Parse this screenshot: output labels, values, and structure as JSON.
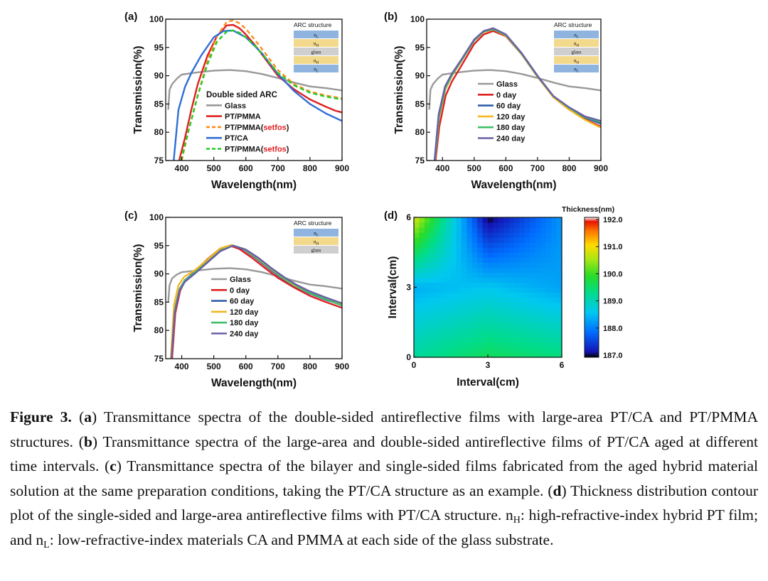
{
  "chart_data": [
    {
      "panel": "(a)",
      "type": "line",
      "xlabel": "Wavelength(nm)",
      "ylabel": "Transmission(%)",
      "xlim": [
        350,
        900
      ],
      "ylim": [
        75,
        100
      ],
      "xticks": [
        400,
        500,
        600,
        700,
        800,
        900
      ],
      "yticks": [
        75,
        80,
        85,
        90,
        95,
        100
      ],
      "legend_title": "Double sided ARC",
      "inset": {
        "title": "ARC structure",
        "layers": [
          "nL",
          "nH",
          "glass",
          "nH",
          "nL"
        ]
      },
      "series": [
        {
          "name": "Glass",
          "color": "#999999",
          "dash": "solid",
          "x": [
            358,
            362,
            370,
            385,
            400,
            450,
            500,
            550,
            600,
            650,
            700,
            750,
            800,
            850,
            900
          ],
          "y": [
            84,
            87.5,
            88.5,
            89.5,
            90.2,
            90.6,
            90.9,
            91.0,
            90.8,
            90.3,
            89.6,
            88.8,
            88.1,
            87.8,
            87.4
          ]
        },
        {
          "name": "PT/PMMA",
          "color": "#e02020",
          "dash": "solid",
          "x": [
            392,
            410,
            430,
            450,
            480,
            510,
            540,
            560,
            580,
            600,
            630,
            660,
            700,
            750,
            800,
            850,
            880,
            900
          ],
          "y": [
            75,
            79,
            84,
            88.5,
            93.5,
            97,
            98.9,
            99.0,
            98.4,
            97.3,
            95.3,
            93.0,
            90.0,
            87.6,
            85.8,
            84.5,
            83.8,
            83.5
          ]
        },
        {
          "name": "PT/PMMA(setfos)",
          "color": "#ff8c1a",
          "dash": "dashed",
          "x": [
            400,
            420,
            450,
            480,
            510,
            540,
            560,
            580,
            600,
            630,
            660,
            700,
            750,
            800,
            850,
            900
          ],
          "y": [
            75,
            80,
            86.5,
            92.5,
            97,
            99.5,
            99.8,
            99.3,
            98.3,
            96.2,
            94.0,
            91.0,
            88.5,
            87.2,
            86.5,
            86.0
          ]
        },
        {
          "name": "PT/CA",
          "color": "#2f6ed6",
          "dash": "solid",
          "x": [
            375,
            390,
            410,
            430,
            460,
            500,
            530,
            560,
            600,
            650,
            700,
            750,
            800,
            850,
            900
          ],
          "y": [
            75,
            84,
            88,
            90.5,
            93.5,
            96.8,
            97.9,
            98.0,
            96.8,
            94.0,
            90.3,
            87.3,
            85.0,
            83.3,
            82.0
          ]
        },
        {
          "name": "PT/PMMA(setfos)",
          "color": "#22cc22",
          "dash": "dashed",
          "x": [
            398,
            420,
            450,
            480,
            510,
            540,
            560,
            580,
            600,
            630,
            660,
            700,
            750,
            800,
            850,
            900
          ],
          "y": [
            75,
            80,
            86.5,
            92,
            96,
            97.8,
            98.0,
            97.6,
            96.8,
            95.2,
            93.2,
            90.5,
            88.3,
            87.0,
            86.3,
            85.8
          ]
        }
      ]
    },
    {
      "panel": "(b)",
      "type": "line",
      "xlabel": "Wavelength(nm)",
      "ylabel": "Transmission(%)",
      "xlim": [
        350,
        900
      ],
      "ylim": [
        75,
        100
      ],
      "xticks": [
        400,
        500,
        600,
        700,
        800,
        900
      ],
      "yticks": [
        75,
        80,
        85,
        90,
        95,
        100
      ],
      "inset": {
        "title": "ARC structure",
        "layers": [
          "nL",
          "nH",
          "glass",
          "nH",
          "nL"
        ]
      },
      "series": [
        {
          "name": "Glass",
          "color": "#999999",
          "x": [
            358,
            362,
            370,
            385,
            400,
            450,
            500,
            550,
            600,
            650,
            700,
            750,
            800,
            850,
            900
          ],
          "y": [
            84,
            87.5,
            88.5,
            89.5,
            90.2,
            90.6,
            90.9,
            91.0,
            90.8,
            90.3,
            89.6,
            88.8,
            88.1,
            87.8,
            87.4
          ]
        },
        {
          "name": "0 day",
          "color": "#e02020",
          "x": [
            378,
            390,
            410,
            430,
            460,
            500,
            530,
            560,
            600,
            650,
            700,
            750,
            800,
            850,
            900
          ],
          "y": [
            75,
            81,
            86.5,
            89,
            91.8,
            95.6,
            97.3,
            97.9,
            97.0,
            93.8,
            89.8,
            86.2,
            84.0,
            82.3,
            81.0
          ]
        },
        {
          "name": "60 day",
          "color": "#2f5fa8",
          "x": [
            375,
            388,
            408,
            430,
            460,
            500,
            530,
            560,
            600,
            650,
            700,
            750,
            800,
            850,
            900
          ],
          "y": [
            75,
            83,
            88,
            90.3,
            92.8,
            96.3,
            97.8,
            98.3,
            97.2,
            93.8,
            89.8,
            86.3,
            84.2,
            82.6,
            81.5
          ]
        },
        {
          "name": "120 day",
          "color": "#f2b81e",
          "x": [
            376,
            389,
            409,
            430,
            460,
            500,
            530,
            560,
            600,
            650,
            700,
            750,
            800,
            850,
            900
          ],
          "y": [
            75,
            82.5,
            87.6,
            90.0,
            92.6,
            96.2,
            97.7,
            98.2,
            97.1,
            93.8,
            89.8,
            86.2,
            84.0,
            82.2,
            80.8
          ]
        },
        {
          "name": "180 day",
          "color": "#3fbf6a",
          "x": [
            376,
            389,
            409,
            430,
            460,
            500,
            530,
            560,
            600,
            650,
            700,
            750,
            800,
            850,
            900
          ],
          "y": [
            75,
            82.8,
            87.8,
            90.1,
            92.7,
            96.2,
            97.8,
            98.2,
            97.2,
            93.9,
            89.9,
            86.4,
            84.3,
            82.7,
            81.8
          ]
        },
        {
          "name": "240 day",
          "color": "#6a5fa6",
          "x": [
            375,
            388,
            408,
            430,
            460,
            500,
            530,
            560,
            600,
            650,
            700,
            750,
            800,
            850,
            900
          ],
          "y": [
            75,
            83.2,
            88.1,
            90.4,
            92.9,
            96.4,
            97.9,
            98.4,
            97.3,
            94.0,
            90.0,
            86.4,
            84.4,
            82.8,
            82.0
          ]
        }
      ]
    },
    {
      "panel": "(c)",
      "type": "line",
      "xlabel": "Wavelength(nm)",
      "ylabel": "Transmission(%)",
      "xlim": [
        350,
        900
      ],
      "ylim": [
        75,
        100
      ],
      "xticks": [
        400,
        500,
        600,
        700,
        800,
        900
      ],
      "yticks": [
        75,
        80,
        85,
        90,
        95,
        100
      ],
      "inset": {
        "title": "ARC structure",
        "layers": [
          "nL",
          "nH",
          "glass"
        ]
      },
      "series": [
        {
          "name": "Glass",
          "color": "#999999",
          "x": [
            358,
            362,
            370,
            385,
            400,
            450,
            500,
            550,
            600,
            650,
            700,
            750,
            800,
            850,
            900
          ],
          "y": [
            85,
            88,
            89.2,
            89.9,
            90.3,
            90.6,
            90.9,
            91.0,
            90.8,
            90.3,
            89.6,
            88.8,
            88.1,
            87.8,
            87.4
          ]
        },
        {
          "name": "0 day",
          "color": "#e02020",
          "x": [
            370,
            380,
            395,
            410,
            440,
            480,
            520,
            550,
            580,
            620,
            660,
            700,
            750,
            800,
            850,
            900
          ],
          "y": [
            75,
            83,
            87,
            88.8,
            90.4,
            92.6,
            94.5,
            95.0,
            94.4,
            92.8,
            91.0,
            89.3,
            87.6,
            86.1,
            85.0,
            84.0
          ]
        },
        {
          "name": "60 day",
          "color": "#2f5fa8",
          "x": [
            368,
            378,
            393,
            410,
            440,
            480,
            520,
            555,
            590,
            630,
            670,
            710,
            750,
            800,
            850,
            900
          ],
          "y": [
            75,
            83.5,
            87.3,
            88.9,
            90.3,
            92.3,
            94.3,
            95.1,
            94.4,
            92.8,
            91.0,
            89.3,
            87.9,
            86.5,
            85.4,
            84.5
          ]
        },
        {
          "name": "120 day",
          "color": "#f2b81e",
          "x": [
            366,
            376,
            390,
            408,
            440,
            480,
            520,
            555,
            590,
            630,
            670,
            710,
            750,
            800,
            850,
            900
          ],
          "y": [
            75,
            84.5,
            88,
            89.5,
            90.6,
            92.5,
            94.5,
            95.1,
            94.5,
            93.0,
            91.2,
            89.5,
            88.0,
            86.6,
            85.5,
            84.7
          ]
        },
        {
          "name": "180 day",
          "color": "#3fbf6a",
          "x": [
            368,
            378,
            393,
            410,
            440,
            480,
            520,
            560,
            595,
            635,
            675,
            715,
            755,
            800,
            850,
            900
          ],
          "y": [
            75,
            83.3,
            87.2,
            88.8,
            90.2,
            92.1,
            94.1,
            95.0,
            94.4,
            92.9,
            91.1,
            89.4,
            88.0,
            86.6,
            85.5,
            84.4
          ]
        },
        {
          "name": "240 day",
          "color": "#6a5fa6",
          "x": [
            368,
            378,
            393,
            410,
            440,
            480,
            520,
            560,
            600,
            640,
            680,
            720,
            760,
            800,
            850,
            900
          ],
          "y": [
            75,
            83.0,
            87.0,
            88.6,
            90.0,
            92.0,
            94.0,
            95.0,
            94.3,
            92.8,
            91.0,
            89.4,
            88.0,
            86.9,
            85.8,
            84.8
          ]
        }
      ]
    },
    {
      "panel": "(d)",
      "type": "heatmap",
      "xlabel": "Interval(cm)",
      "ylabel": "Interval(cm)",
      "xlim": [
        0,
        6
      ],
      "ylim": [
        0,
        6
      ],
      "xticks": [
        0,
        3,
        6
      ],
      "yticks": [
        0,
        3,
        6
      ],
      "colorbar": {
        "title": "Thickness(nm)",
        "min": 187.0,
        "max": 192.0,
        "ticks": [
          "192.0",
          "191.0",
          "190.0",
          "189.0",
          "188.0",
          "187.0"
        ]
      },
      "grid_x": [
        0,
        3,
        6
      ],
      "grid_y": [
        0,
        3,
        6
      ],
      "values": [
        [
          189.2,
          189.6,
          189.4
        ],
        [
          188.4,
          188.6,
          188.3
        ],
        [
          190.8,
          187.0,
          188.2
        ]
      ]
    }
  ],
  "caption": {
    "label": "Figure 3.",
    "parts": [
      {
        "t": " ("
      },
      {
        "t": "a",
        "b": true
      },
      {
        "t": ") Transmittance spectra of the double-sided antireflective films with large-area PT/CA and PT/PMMA structures. ("
      },
      {
        "t": "b",
        "b": true
      },
      {
        "t": ") Transmittance spectra of the large-area and double-sided antireflective films of PT/CA aged at different time intervals. ("
      },
      {
        "t": "c",
        "b": true
      },
      {
        "t": ") Transmittance spectra of the bilayer and single-sided films fabricated from the aged hybrid material solution at the same preparation conditions, taking the PT/CA structure as an example. ("
      },
      {
        "t": "d",
        "b": true
      },
      {
        "t": ") Thickness distribution contour plot of the single-sided and large-area antireflective films with PT/CA structure. n"
      },
      {
        "t": "H",
        "sub": true
      },
      {
        "t": ": high-refractive-index hybrid PT film; and n"
      },
      {
        "t": "L",
        "sub": true
      },
      {
        "t": ": low-refractive-index materials CA and PMMA at each side of the glass substrate."
      }
    ]
  }
}
